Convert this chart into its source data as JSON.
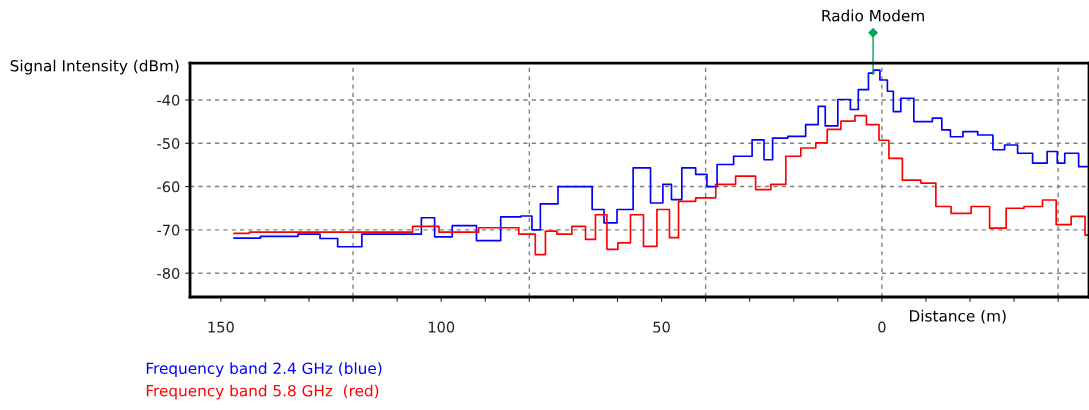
{
  "chart_data": {
    "type": "step",
    "xlabel": "Distance (m)",
    "ylabel": "Signal Intensity (dBm)",
    "xlim": [
      157,
      -47
    ],
    "ylim": [
      -85.5,
      -31.5
    ],
    "xticks": [
      {
        "value": 150,
        "label": "150"
      },
      {
        "value": 140,
        "label": null
      },
      {
        "value": 130,
        "label": null
      },
      {
        "value": 120,
        "label": null
      },
      {
        "value": 110,
        "label": null
      },
      {
        "value": 100,
        "label": "100"
      },
      {
        "value": 90,
        "label": null
      },
      {
        "value": 80,
        "label": null
      },
      {
        "value": 70,
        "label": null
      },
      {
        "value": 60,
        "label": null
      },
      {
        "value": 50,
        "label": "50"
      },
      {
        "value": 40,
        "label": null
      },
      {
        "value": 30,
        "label": null
      },
      {
        "value": 20,
        "label": null
      },
      {
        "value": 10,
        "label": null
      },
      {
        "value": 0,
        "label": "0"
      },
      {
        "value": -10,
        "label": null
      },
      {
        "value": -20,
        "label": null
      },
      {
        "value": -30,
        "label": null
      },
      {
        "value": -40,
        "label": null
      }
    ],
    "yticks": [
      -40,
      -50,
      -60,
      -70,
      -80
    ],
    "grid": "y",
    "ref_lines": [
      {
        "axis": "x",
        "value": 120,
        "color": "#808080",
        "line_style": "dashed"
      },
      {
        "axis": "x",
        "value": 80,
        "color": "#808080",
        "line_style": "dashed"
      },
      {
        "axis": "x",
        "value": 40,
        "color": "#808080",
        "line_style": "dashed"
      },
      {
        "axis": "x",
        "value": 0,
        "color": "#808080",
        "line_style": "dashed"
      },
      {
        "axis": "x",
        "value": -40,
        "color": "#808080",
        "line_style": "dashed"
      }
    ],
    "annotations": [
      {
        "text": "Radio Modem",
        "x": 2,
        "y": -34
      }
    ],
    "legend": "bottom left",
    "series": [
      {
        "name": "Frequency band 2.4 GHz (blue)",
        "color": "#0000ff",
        "x": [
          147,
          135,
          130,
          125,
          122,
          114,
          106,
          103,
          100,
          95,
          89,
          84,
          79.8,
          79,
          76,
          71,
          67,
          64.5,
          61.6,
          58.6,
          54.3,
          50.7,
          48.7,
          46.8,
          44,
          40.5,
          38.9,
          35.9,
          31.4,
          27.5,
          26,
          23.6,
          19.1,
          15.5,
          13.4,
          12.3,
          7.7,
          6.6,
          4.1,
          2,
          1.8,
          -0.9,
          -1.6,
          -3.6,
          -5,
          -9.5,
          -13.4,
          -13.8,
          -17.3,
          -19.5,
          -24,
          -26.4,
          -29.3,
          -32.3,
          -36.1,
          -38.9,
          -40.7,
          -42.3,
          -47
        ],
        "values": [
          -71.9,
          -71.5,
          -71,
          -72,
          -73.9,
          -71,
          -71,
          -67.2,
          -71.6,
          -69,
          -72.5,
          -67,
          -66.8,
          -70,
          -64,
          -60,
          -60,
          -65.3,
          -68.4,
          -65.3,
          -55.7,
          -63.8,
          -59.5,
          -63,
          -55.7,
          -57.2,
          -60,
          -54.9,
          -53,
          -49.2,
          -53.8,
          -48.8,
          -48.4,
          -45.7,
          -41.5,
          -46,
          -39.9,
          -42.2,
          -37.6,
          -33.8,
          -33.1,
          -35.4,
          -38,
          -42.7,
          -39.6,
          -45,
          -44.2,
          -46.9,
          -48.5,
          -47.3,
          -48.1,
          -51.5,
          -50.4,
          -52.3,
          -54.6,
          -51.9,
          -54.6,
          -52.3,
          -55.4
        ]
      },
      {
        "name": "Frequency band 5.8 GHz  (red)",
        "color": "#ff0000",
        "x": [
          147,
          140,
          130,
          120,
          110,
          103,
          98,
          85,
          79.8,
          77.5,
          75.2,
          72.3,
          68.4,
          66.1,
          63.9,
          60.9,
          58.9,
          55.2,
          53,
          49.1,
          47.3,
          45,
          39.5,
          35.9,
          30.5,
          26.8,
          23.6,
          20,
          16.8,
          13.2,
          11.6,
          7,
          5.2,
          1.8,
          -0.5,
          -2.7,
          -6.6,
          -11.1,
          -13.4,
          -18,
          -22.5,
          -26.4,
          -30,
          -34.5,
          -38.4,
          -40.7,
          -45.2,
          -47
        ],
        "values": [
          -70.8,
          -70.5,
          -70.5,
          -70.5,
          -70.5,
          -69.2,
          -70.5,
          -69.5,
          -71,
          -75.7,
          -70.3,
          -71,
          -69.2,
          -72.2,
          -66.5,
          -74.5,
          -73,
          -66.5,
          -73.8,
          -65.3,
          -71.8,
          -63.4,
          -62.6,
          -59.5,
          -57.6,
          -60.7,
          -59.5,
          -53,
          -51.1,
          -49.9,
          -46.8,
          -44.9,
          -43.6,
          -45.7,
          -49.3,
          -53.5,
          -58.5,
          -59.2,
          -64.6,
          -66.2,
          -64.6,
          -69.6,
          -65,
          -64.6,
          -63.1,
          -68.8,
          -66.9,
          -71.2
        ]
      }
    ]
  }
}
